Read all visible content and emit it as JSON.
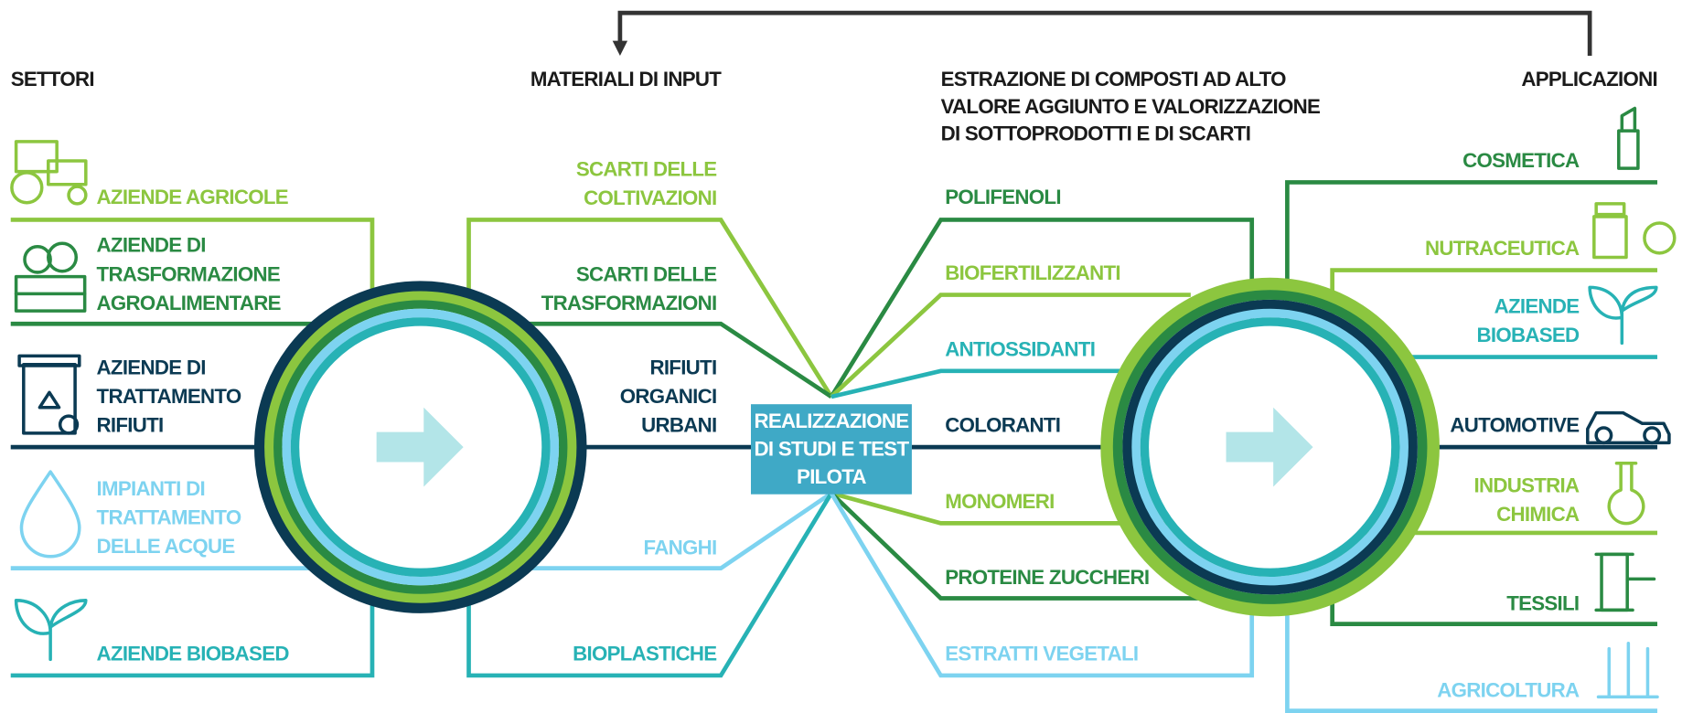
{
  "headers": {
    "sectors": "SETTORI",
    "inputs": "MATERIALI DI INPUT",
    "outputs": [
      "ESTRAZIONE DI COMPOSTI AD ALTO",
      "VALORE AGGIUNTO E VALORIZZAZIONE",
      "DI SOTTOPRODOTTI E DI SCARTI"
    ],
    "applications": "APPLICAZIONI"
  },
  "sectors": [
    [
      "AZIENDE AGRICOLE"
    ],
    [
      "AZIENDE DI",
      "TRASFORMAZIONE",
      "AGROALIMENTARE"
    ],
    [
      "AZIENDE DI",
      "TRATTAMENTO",
      "RIFIUTI"
    ],
    [
      "IMPIANTI DI",
      "TRATTAMENTO",
      "DELLE ACQUE"
    ],
    [
      "AZIENDE BIOBASED"
    ]
  ],
  "inputs": [
    [
      "SCARTI DELLE",
      "COLTIVAZIONI"
    ],
    [
      "SCARTI DELLE",
      "TRASFORMAZIONI"
    ],
    [
      "RIFIUTI",
      "ORGANICI",
      "URBANI"
    ],
    [
      "FANGHI"
    ],
    [
      "BIOPLASTICHE"
    ]
  ],
  "center": [
    "REALIZZAZIONE",
    "DI STUDI E TEST",
    "PILOTA"
  ],
  "outputs": [
    [
      "POLIFENOLI"
    ],
    [
      "BIOFERTILIZZANTI"
    ],
    [
      "ANTIOSSIDANTI"
    ],
    [
      "COLORANTI"
    ],
    [
      "MONOMERI"
    ],
    [
      "PROTEINE ZUCCHERI"
    ],
    [
      "ESTRATTI VEGETALI"
    ]
  ],
  "applications": [
    [
      "COSMETICA"
    ],
    [
      "NUTRACEUTICA"
    ],
    [
      "AZIENDE",
      "BIOBASED"
    ],
    [
      "AUTOMOTIVE"
    ],
    [
      "INDUSTRIA",
      "CHIMICA"
    ],
    [
      "TESSILI"
    ],
    [
      "AGRICOLTURA"
    ]
  ]
}
